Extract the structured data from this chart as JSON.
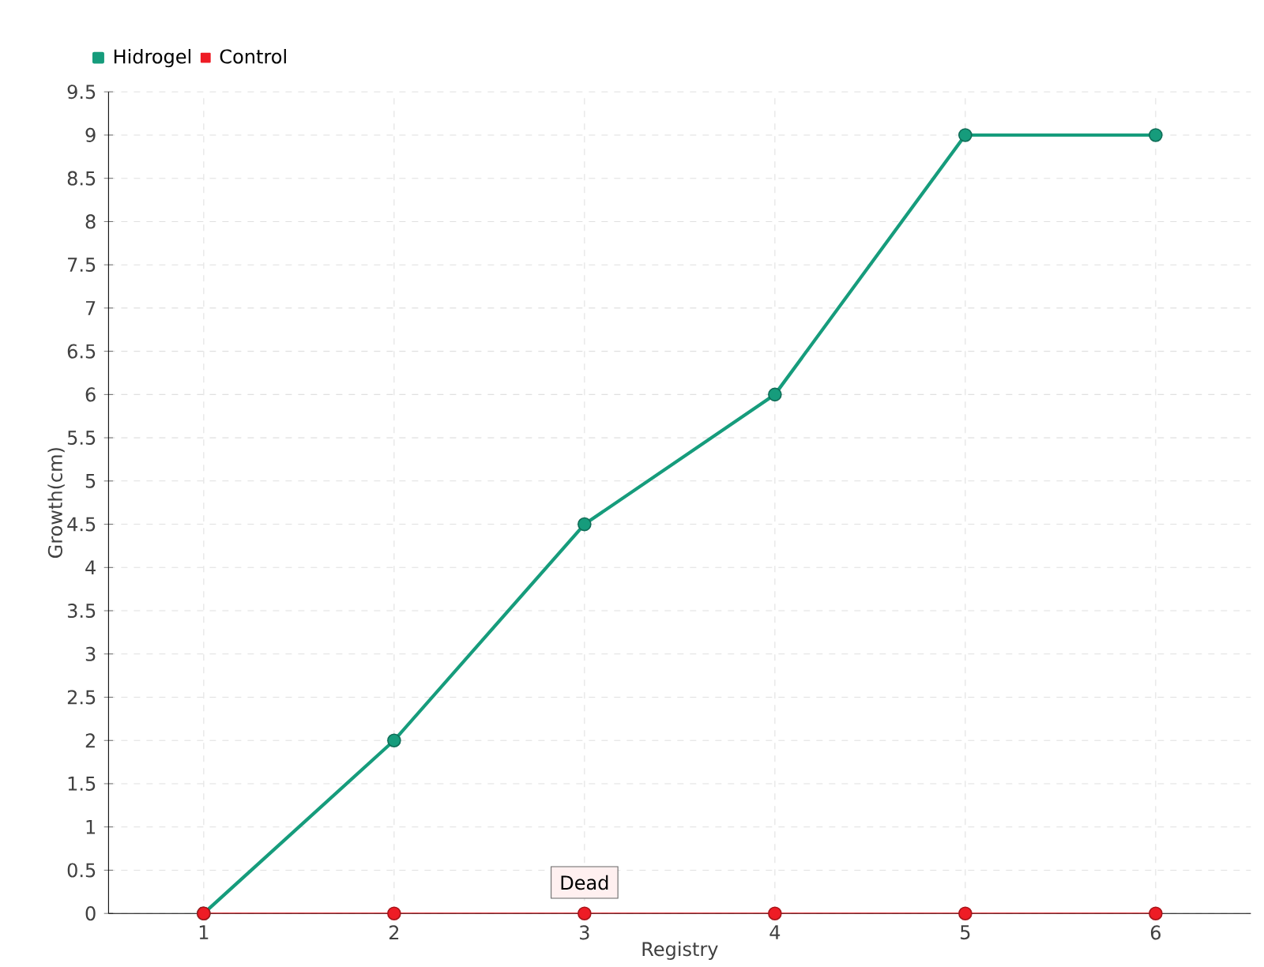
{
  "chart_data": {
    "type": "line",
    "xlabel": "Registry",
    "ylabel": "Growth(cm)",
    "categories": [
      "1",
      "2",
      "3",
      "4",
      "5",
      "6"
    ],
    "series": [
      {
        "name": "Hidrogel",
        "color": "#169c7c",
        "values": [
          0,
          2,
          4.5,
          6,
          9,
          9
        ]
      },
      {
        "name": "Control",
        "color": "#ee1c25",
        "values": [
          0,
          0,
          0,
          0,
          0,
          0
        ]
      }
    ],
    "ylim": [
      0,
      9.5
    ],
    "yticks": [
      0,
      0.5,
      1,
      1.5,
      2,
      2.5,
      3,
      3.5,
      4,
      4.5,
      5,
      5.5,
      6,
      6.5,
      7,
      7.5,
      8,
      8.5,
      9,
      9.5
    ],
    "annotations": [
      {
        "text": "Dead",
        "x": "3",
        "y": 0
      }
    ],
    "grid": true,
    "legend": "top left",
    "marker": "circle",
    "line_style": "solid"
  }
}
